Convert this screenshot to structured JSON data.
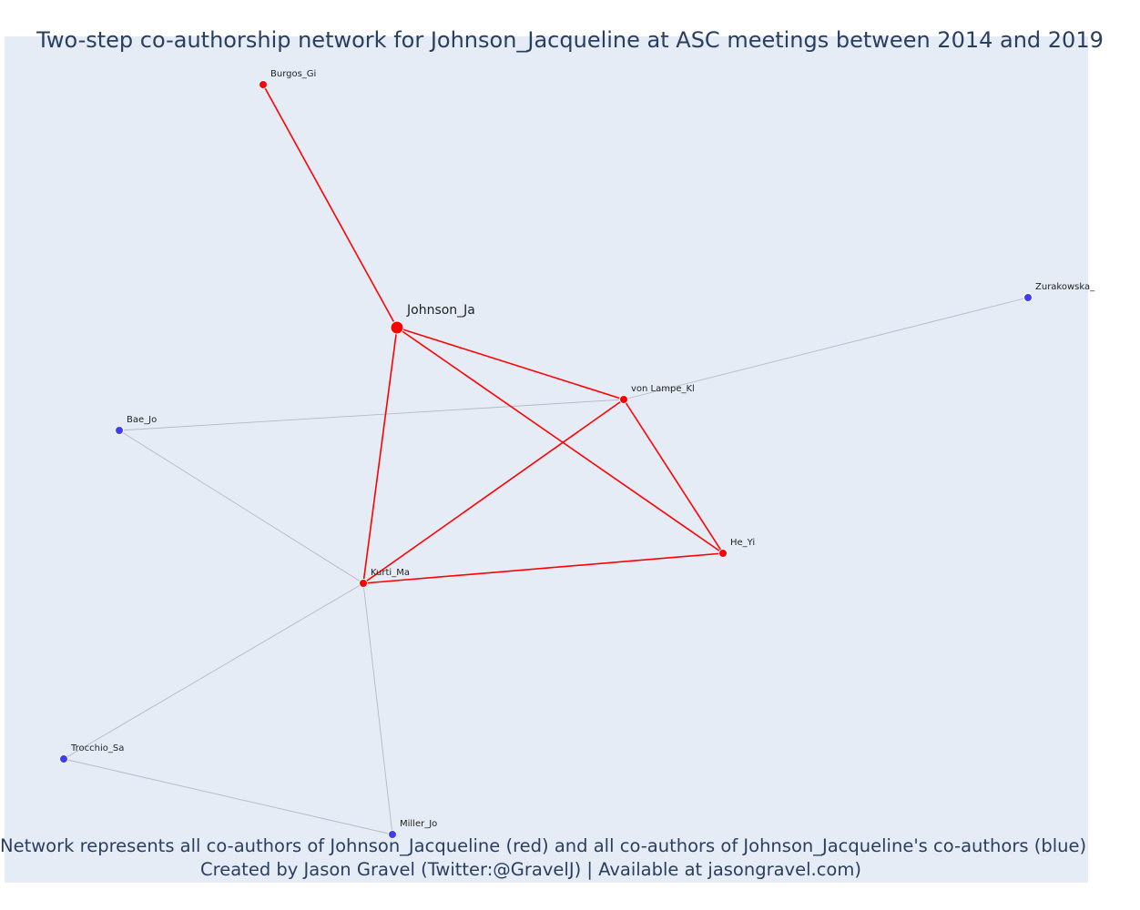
{
  "title": "Two-step co-authorship network for Johnson_Jacqueline at ASC meetings between 2014 and 2019",
  "footer": {
    "line1": "Network represents all co-authors of Johnson_Jacqueline (red) and all co-authors of Johnson_Jacqueline's co-authors (blue)",
    "line2": "Created by Jason Gravel (Twitter:@GravelJ) | Available at jasongravel.com)"
  },
  "colors": {
    "background": "#e5ecf6",
    "direct": "#ff0000",
    "second": "#3d3df5",
    "secondary_edge": "#b4b8c8",
    "text": "#2a3f5f"
  },
  "nodes": [
    {
      "id": "Johnson_Ja",
      "label": "Johnson_Ja",
      "group": "focal"
    },
    {
      "id": "Burgos_Gi",
      "label": "Burgos_Gi",
      "group": "direct"
    },
    {
      "id": "von Lampe_Kl",
      "label": "von Lampe_Kl",
      "group": "direct"
    },
    {
      "id": "He_Yi",
      "label": "He_Yi",
      "group": "direct"
    },
    {
      "id": "Kurti_Ma",
      "label": "Kurti_Ma",
      "group": "direct"
    },
    {
      "id": "Zurakowska_",
      "label": "Zurakowska_",
      "group": "second"
    },
    {
      "id": "Bae_Jo",
      "label": "Bae_Jo",
      "group": "second"
    },
    {
      "id": "Trocchio_Sa",
      "label": "Trocchio_Sa",
      "group": "second"
    },
    {
      "id": "Miller_Jo",
      "label": "Miller_Jo",
      "group": "second"
    }
  ],
  "edges": [
    {
      "source": "Johnson_Ja",
      "target": "Burgos_Gi",
      "group": "direct"
    },
    {
      "source": "Johnson_Ja",
      "target": "von Lampe_Kl",
      "group": "direct"
    },
    {
      "source": "Johnson_Ja",
      "target": "He_Yi",
      "group": "direct"
    },
    {
      "source": "Johnson_Ja",
      "target": "Kurti_Ma",
      "group": "direct"
    },
    {
      "source": "Kurti_Ma",
      "target": "von Lampe_Kl",
      "group": "direct"
    },
    {
      "source": "Kurti_Ma",
      "target": "He_Yi",
      "group": "direct"
    },
    {
      "source": "von Lampe_Kl",
      "target": "He_Yi",
      "group": "direct"
    },
    {
      "source": "von Lampe_Kl",
      "target": "Zurakowska_",
      "group": "second"
    },
    {
      "source": "von Lampe_Kl",
      "target": "Bae_Jo",
      "group": "second"
    },
    {
      "source": "Bae_Jo",
      "target": "Kurti_Ma",
      "group": "second"
    },
    {
      "source": "Kurti_Ma",
      "target": "Trocchio_Sa",
      "group": "second"
    },
    {
      "source": "Kurti_Ma",
      "target": "Miller_Jo",
      "group": "second"
    },
    {
      "source": "Trocchio_Sa",
      "target": "Miller_Jo",
      "group": "second"
    }
  ]
}
